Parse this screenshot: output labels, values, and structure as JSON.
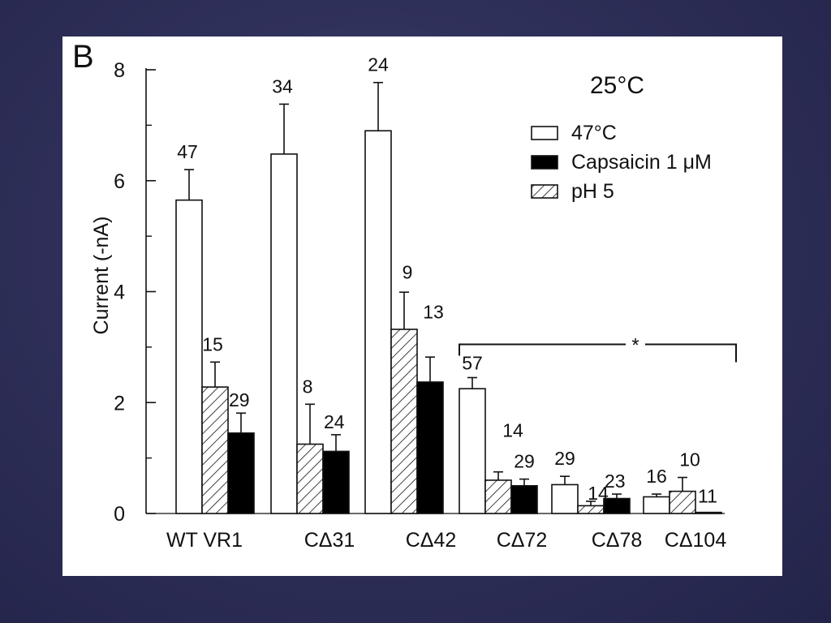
{
  "figure": {
    "panel_label": "B",
    "temperature": "25°C",
    "significance_marker": "*"
  },
  "chart_data": {
    "type": "bar",
    "title": "",
    "ylabel": "Current (-nA)",
    "xlabel": "",
    "ylim": [
      0,
      8
    ],
    "yticks": [
      0,
      2,
      4,
      6,
      8
    ],
    "categories": [
      "WT VR1",
      "CΔ31",
      "CΔ42",
      "CΔ72",
      "CΔ78",
      "CΔ104"
    ],
    "series": [
      {
        "name": "47°C",
        "pattern": "open",
        "values": [
          5.65,
          6.48,
          6.9,
          2.25,
          0.52,
          0.3
        ],
        "errors": [
          0.55,
          0.9,
          0.87,
          0.2,
          0.15,
          0.05
        ],
        "n": [
          "47",
          "34",
          "24",
          "57",
          "29",
          "16"
        ]
      },
      {
        "name": "pH 5",
        "pattern": "hatched",
        "values": [
          2.28,
          1.25,
          3.32,
          0.6,
          0.14,
          0.4
        ],
        "errors": [
          0.45,
          0.72,
          0.67,
          0.15,
          0.08,
          0.25
        ],
        "n": [
          "15",
          "8",
          "9",
          "14",
          "14",
          "10"
        ]
      },
      {
        "name": "Capsaicin 1 μM",
        "pattern": "filled",
        "values": [
          1.45,
          1.12,
          2.37,
          0.5,
          0.27,
          0.02
        ],
        "errors": [
          0.36,
          0.3,
          0.45,
          0.12,
          0.08,
          0.0
        ],
        "n": [
          "29",
          "24",
          "13",
          "29",
          "23",
          "11"
        ]
      }
    ],
    "legend_order": [
      "47°C",
      "Capsaicin 1 μM",
      "pH 5"
    ],
    "legend_position": "top-right",
    "significance_bracket": {
      "from": "CΔ72",
      "to": "CΔ104",
      "label": "*"
    },
    "grid": false
  }
}
